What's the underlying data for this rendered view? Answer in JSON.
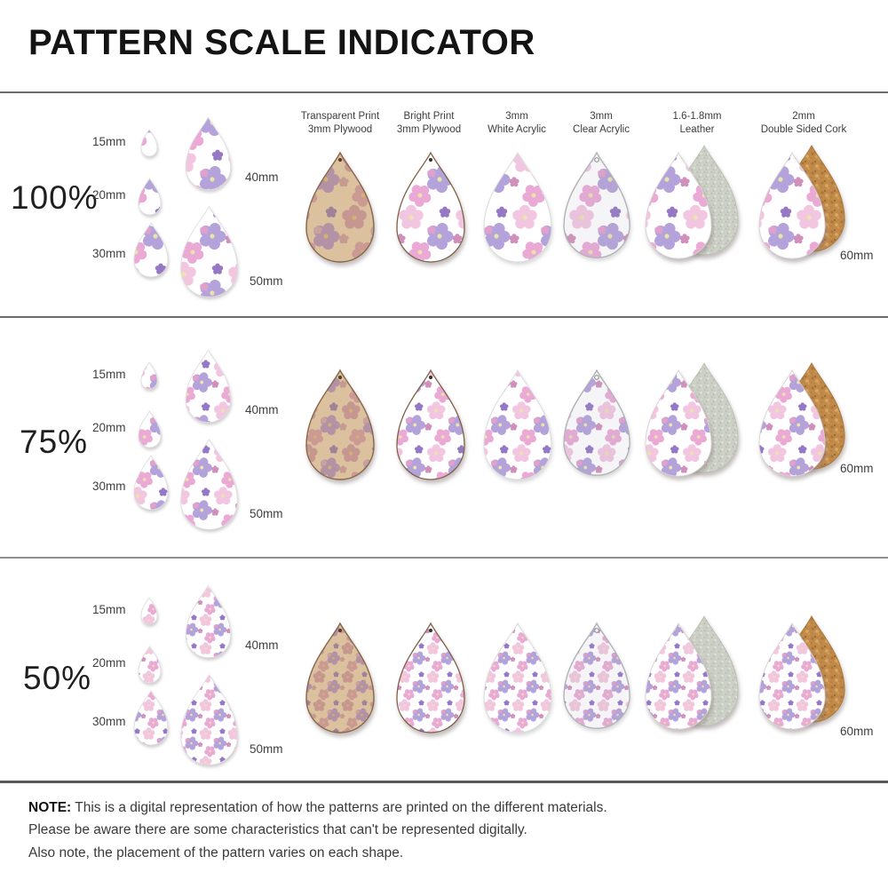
{
  "title": "PATTERN SCALE INDICATOR",
  "material_headers": [
    {
      "line1": "Transparent Print",
      "line2": "3mm Plywood"
    },
    {
      "line1": "Bright Print",
      "line2": "3mm Plywood"
    },
    {
      "line1": "3mm",
      "line2": "White Acrylic"
    },
    {
      "line1": "3mm",
      "line2": "Clear Acrylic"
    },
    {
      "line1": "1.6-1.8mm",
      "line2": "Leather"
    },
    {
      "line1": "2mm",
      "line2": "Double Sided Cork"
    }
  ],
  "rows": [
    {
      "scale": "100%"
    },
    {
      "scale": "75%"
    },
    {
      "scale": "50%"
    }
  ],
  "size_labels": {
    "s15": "15mm",
    "s20": "20mm",
    "s30": "30mm",
    "s40": "40mm",
    "s50": "50mm",
    "s60": "60mm"
  },
  "note": {
    "label": "NOTE:",
    "line1": "This is a digital representation of how the patterns are printed on the different materials.",
    "line2": "Please be aware there are some characteristics that can't be represented digitally.",
    "line3": "Also note, the placement of the pattern varies on each shape."
  },
  "colors": {
    "pattern_pale_pink": "#f2c6e0",
    "pattern_lavender": "#b4a2da",
    "pattern_bright_pink": "#eaaad5",
    "pattern_deep_lilac": "#9478c4",
    "pattern_flower_center": "#e9e4a8",
    "plywood_tan": "#dcc19e",
    "suede_grey": "#cbcfc5",
    "cork_brown": "#c28a48",
    "background": "#ffffff"
  }
}
